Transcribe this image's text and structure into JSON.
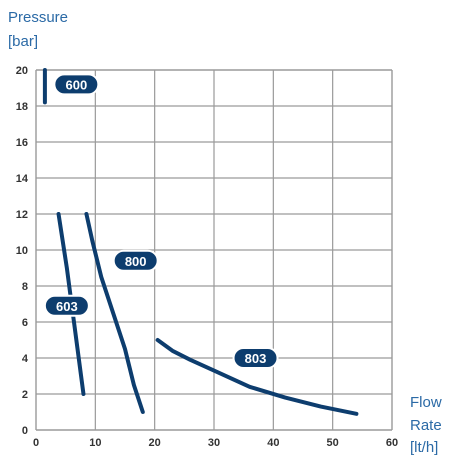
{
  "chart_data": {
    "type": "line",
    "ylabel": [
      "Pressure",
      "[bar]"
    ],
    "xlabel": [
      "Flow",
      "Rate",
      "[lt/h]"
    ],
    "xlim": [
      0,
      60
    ],
    "ylim": [
      0,
      20
    ],
    "x_ticks": [
      "0",
      "10",
      "20",
      "30",
      "40",
      "50",
      "60"
    ],
    "y_ticks": [
      "0",
      "2",
      "4",
      "6",
      "8",
      "10",
      "12",
      "14",
      "16",
      "18",
      "20"
    ],
    "grid": true,
    "series": [
      {
        "name": "600",
        "x": [
          1.5,
          1.5
        ],
        "y": [
          18.2,
          20.0
        ]
      },
      {
        "name": "603",
        "x": [
          3.8,
          5.2,
          6.2,
          7.0,
          7.6,
          8.0
        ],
        "y": [
          12.0,
          9.0,
          6.5,
          4.5,
          3.0,
          2.0
        ]
      },
      {
        "name": "800",
        "x": [
          8.5,
          9.5,
          11.0,
          13.0,
          15.0,
          16.5,
          18.0
        ],
        "y": [
          12.0,
          10.5,
          8.5,
          6.5,
          4.5,
          2.5,
          1.0
        ]
      },
      {
        "name": "803",
        "x": [
          20.5,
          23.0,
          26.0,
          30.0,
          36.0,
          42.0,
          48.0,
          54.0
        ],
        "y": [
          5.0,
          4.4,
          3.9,
          3.3,
          2.4,
          1.8,
          1.3,
          0.9
        ]
      }
    ],
    "line_color": "#0d3d6e",
    "grid_color": "#9a9a9a",
    "axis_label_color": "#2b6aa6"
  }
}
